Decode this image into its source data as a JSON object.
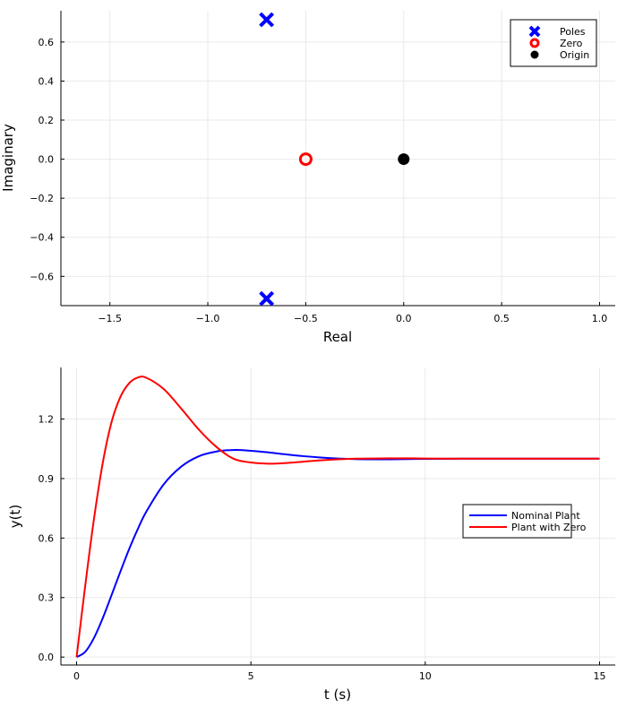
{
  "chart_data": [
    {
      "type": "scatter",
      "title": "",
      "xlabel": "Real",
      "ylabel": "Imaginary",
      "xlim": [
        -1.75,
        1.08
      ],
      "ylim": [
        -0.75,
        0.76
      ],
      "xticks": [
        -1.5,
        -1.0,
        -0.5,
        0.0,
        0.5,
        1.0
      ],
      "xtick_labels": [
        "−1.5",
        "−1.0",
        "−0.5",
        "0.0",
        "0.5",
        "1.0"
      ],
      "yticks": [
        -0.6,
        -0.4,
        -0.2,
        0.0,
        0.2,
        0.4,
        0.6
      ],
      "ytick_labels": [
        "−0.6",
        "−0.4",
        "−0.2",
        "0.0",
        "0.2",
        "0.4",
        "0.6"
      ],
      "grid": true,
      "legend_position": "top-right",
      "series": [
        {
          "name": "Poles",
          "marker": "x",
          "color": "#0000ff",
          "points": [
            [
              -0.7,
              0.714
            ],
            [
              -0.7,
              -0.714
            ]
          ]
        },
        {
          "name": "Zero",
          "marker": "open-circle",
          "color": "#ff0000",
          "points": [
            [
              -0.5,
              0.0
            ]
          ]
        },
        {
          "name": "Origin",
          "marker": "filled-circle",
          "color": "#000000",
          "points": [
            [
              0.0,
              0.0
            ]
          ]
        }
      ]
    },
    {
      "type": "line",
      "title": "",
      "xlabel": "t (s)",
      "ylabel": "y(t)",
      "xlim": [
        -0.45,
        15.45
      ],
      "ylim": [
        -0.04,
        1.46
      ],
      "xticks": [
        0,
        5,
        10,
        15
      ],
      "xtick_labels": [
        "0",
        "5",
        "10",
        "15"
      ],
      "yticks": [
        0.0,
        0.3,
        0.6,
        0.9,
        1.2
      ],
      "ytick_labels": [
        "0.0",
        "0.3",
        "0.6",
        "0.9",
        "1.2"
      ],
      "grid": true,
      "legend_position": "right",
      "x": [
        0,
        0.25,
        0.5,
        0.75,
        1,
        1.25,
        1.5,
        1.75,
        2,
        2.5,
        3,
        3.5,
        4,
        4.5,
        5,
        5.5,
        6,
        6.5,
        7,
        7.5,
        8,
        8.5,
        9,
        9.5,
        10,
        11,
        12,
        13,
        14,
        15
      ],
      "series": [
        {
          "name": "Nominal Plant",
          "color": "#0000ff",
          "values": [
            0.0,
            0.027,
            0.097,
            0.196,
            0.311,
            0.428,
            0.541,
            0.643,
            0.733,
            0.871,
            0.96,
            1.012,
            1.036,
            1.044,
            1.04,
            1.032,
            1.022,
            1.013,
            1.006,
            1.001,
            0.998,
            0.997,
            0.997,
            0.998,
            0.999,
            1.0,
            1.0,
            1.0,
            1.0,
            1.0
          ]
        },
        {
          "name": "Plant with Zero",
          "color": "#ff0000",
          "values": [
            0.0,
            0.363,
            0.698,
            0.978,
            1.183,
            1.309,
            1.379,
            1.409,
            1.408,
            1.351,
            1.253,
            1.148,
            1.061,
            1.0,
            0.981,
            0.975,
            0.978,
            0.985,
            0.992,
            0.997,
            1.0,
            1.001,
            1.002,
            1.002,
            1.001,
            1.0,
            1.0,
            1.0,
            1.0,
            1.0
          ]
        }
      ]
    }
  ]
}
